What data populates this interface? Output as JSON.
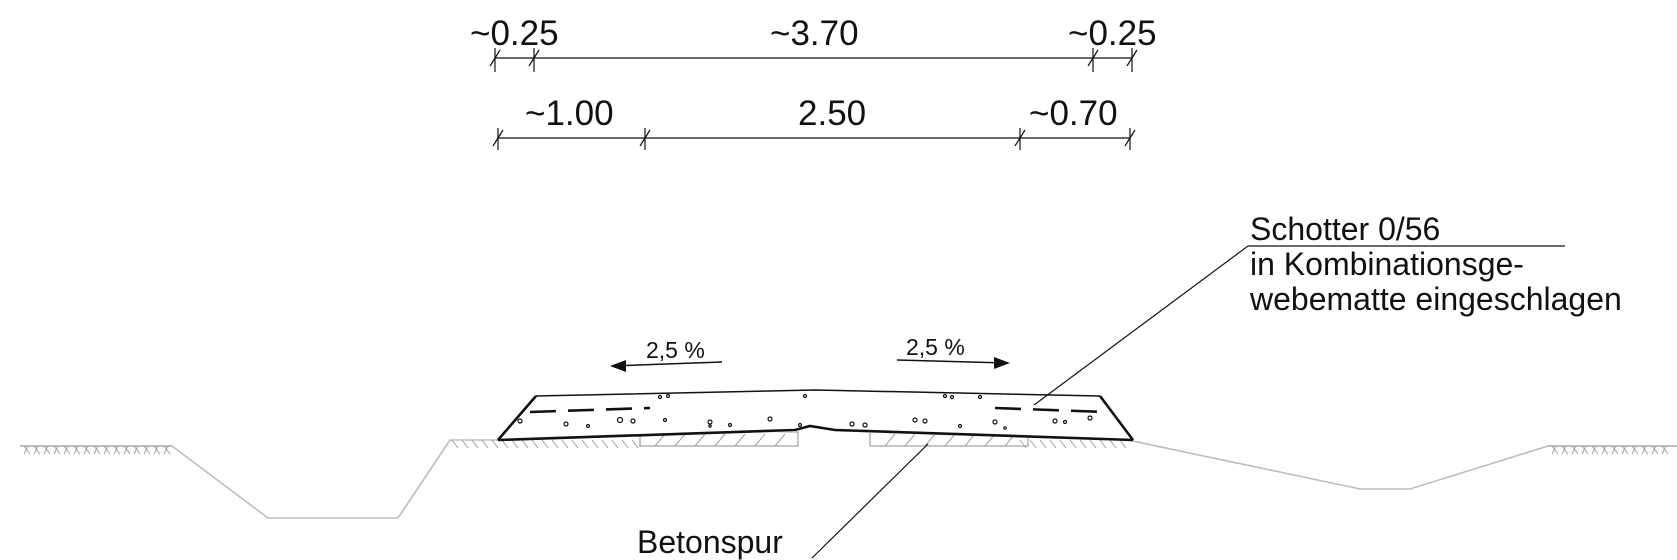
{
  "dimensions": {
    "top_row": [
      "~0.25",
      "~3.70",
      "~0.25"
    ],
    "bottom_row": [
      "~1.00",
      "2.50",
      "~0.70"
    ]
  },
  "slopes": {
    "left": "2,5 %",
    "right": "2,5 %"
  },
  "labels": {
    "schotter_line1": "Schotter 0/56",
    "schotter_line2": "in Kombinationsge-",
    "schotter_line3": "webematte eingeschlagen",
    "betonspur": "Betonspur"
  }
}
